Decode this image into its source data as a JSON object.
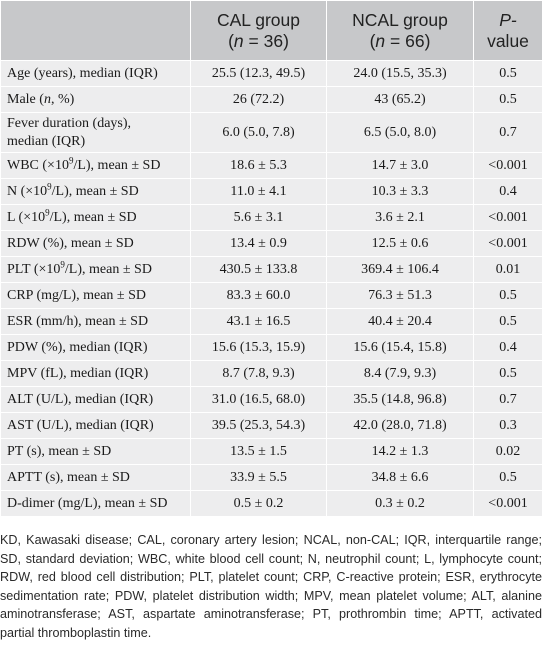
{
  "header": {
    "col1": "",
    "col2_line1": "CAL group",
    "col2_n": "n",
    "col2_line2_rest": " = 36)",
    "col3_line1": "NCAL group",
    "col3_n": "n",
    "col3_line2_rest": " = 66)",
    "col4_line1": "P-",
    "col4_line2": "value"
  },
  "rows": [
    {
      "pre": "Age (years), median (IQR)",
      "cal": "25.5 (12.3, 49.5)",
      "ncal": "24.0 (15.5, 35.3)",
      "p": "0.5"
    },
    {
      "pre": "Male (",
      "ital": "n",
      "post": ", %)",
      "cal": "26 (72.2)",
      "ncal": "43 (65.2)",
      "p": "0.5"
    },
    {
      "line1": "Fever duration (days),",
      "line2": "median (IQR)",
      "cal": "6.0 (5.0, 7.8)",
      "ncal": "6.5 (5.0, 8.0)",
      "p": "0.7"
    },
    {
      "pre": "WBC (×10",
      "sup": "9",
      "post": "/L), mean ± SD",
      "cal": "18.6 ± 5.3",
      "ncal": "14.7 ± 3.0",
      "p": "<0.001"
    },
    {
      "pre": "N (×10",
      "sup": "9",
      "post": "/L), mean ± SD",
      "cal": "11.0 ± 4.1",
      "ncal": "10.3 ± 3.3",
      "p": "0.4"
    },
    {
      "pre": "L (×10",
      "sup": "9",
      "post": "/L), mean ± SD",
      "cal": "5.6 ± 3.1",
      "ncal": "3.6 ± 2.1",
      "p": "<0.001"
    },
    {
      "pre": "RDW (%), mean ± SD",
      "cal": "13.4 ± 0.9",
      "ncal": "12.5 ± 0.6",
      "p": "<0.001"
    },
    {
      "pre": "PLT (×10",
      "sup": "9",
      "post": "/L), mean ± SD",
      "cal": "430.5 ± 133.8",
      "ncal": "369.4 ± 106.4",
      "p": "0.01"
    },
    {
      "pre": "CRP (mg/L), mean ± SD",
      "cal": "83.3 ± 60.0",
      "ncal": "76.3 ± 51.3",
      "p": "0.5"
    },
    {
      "pre": "ESR (mm/h), mean ± SD",
      "cal": "43.1 ± 16.5",
      "ncal": "40.4 ± 20.4",
      "p": "0.5"
    },
    {
      "pre": "PDW (%), median (IQR)",
      "cal": "15.6 (15.3, 15.9)",
      "ncal": "15.6 (15.4, 15.8)",
      "p": "0.4"
    },
    {
      "pre": "MPV (fL), median (IQR)",
      "cal": "8.7 (7.8, 9.3)",
      "ncal": "8.4 (7.9, 9.3)",
      "p": "0.5"
    },
    {
      "pre": "ALT (U/L), median (IQR)",
      "cal": "31.0 (16.5, 68.0)",
      "ncal": "35.5 (14.8, 96.8)",
      "p": "0.7"
    },
    {
      "pre": "AST (U/L), median (IQR)",
      "cal": "39.5 (25.3, 54.3)",
      "ncal": "42.0 (28.0, 71.8)",
      "p": "0.3"
    },
    {
      "pre": "PT (s), mean ± SD",
      "cal": "13.5 ± 1.5",
      "ncal": "14.2 ± 1.3",
      "p": "0.02"
    },
    {
      "pre": "APTT (s), mean ± SD",
      "cal": "33.9 ± 5.5",
      "ncal": "34.8 ± 6.6",
      "p": "0.5"
    },
    {
      "pre": "D-dimer (mg/L), mean ± SD",
      "cal": "0.5 ± 0.2",
      "ncal": "0.3 ± 0.2",
      "p": "<0.001"
    }
  ],
  "footnote": "KD, Kawasaki disease; CAL, coronary artery lesion; NCAL, non-CAL; IQR, interquartile range; SD, standard deviation; WBC, white blood cell count; N, neutrophil count; L, lymphocyte count; RDW, red blood cell distribution; PLT, platelet count; CRP, C-reactive protein; ESR, erythrocyte sedimentation rate; PDW, platelet distribution width; MPV, mean platelet volume; ALT, alanine aminotransferase; AST, aspartate aminotransferase; PT, prothrombin time; APTT, activated partial thromboplastin time."
}
